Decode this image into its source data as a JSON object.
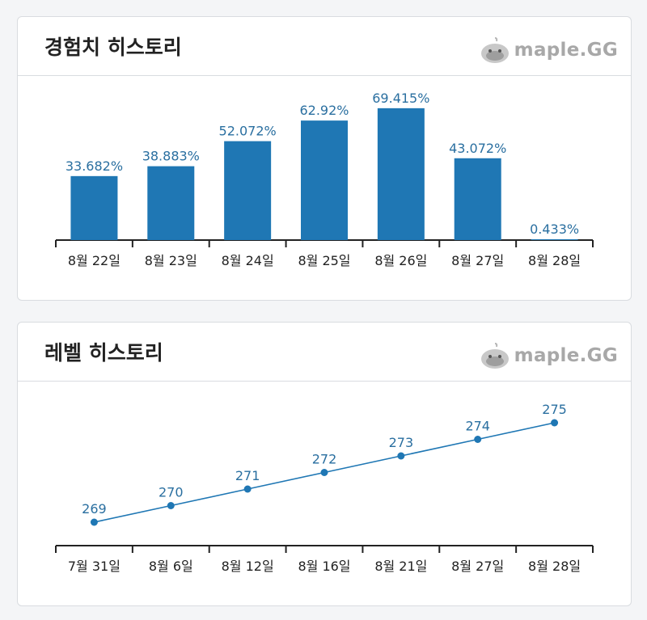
{
  "logo_text": "maple.GG",
  "exp_card": {
    "title": "경험치 히스토리"
  },
  "level_card": {
    "title": "레벨 히스토리"
  },
  "colors": {
    "bar": "#1f77b4",
    "label": "#2a6fa0",
    "axis": "#222222"
  },
  "chart_data": [
    {
      "type": "bar",
      "categories": [
        "8월 22일",
        "8월 23일",
        "8월 24일",
        "8월 25일",
        "8월 26일",
        "8월 27일",
        "8월 28일"
      ],
      "values": [
        33.682,
        38.883,
        52.072,
        62.92,
        69.415,
        43.072,
        0.433
      ],
      "value_labels": [
        "33.682%",
        "38.883%",
        "52.072%",
        "62.92%",
        "69.415%",
        "43.072%",
        "0.433%"
      ],
      "ylim": [
        0,
        100
      ]
    },
    {
      "type": "line",
      "categories": [
        "7월 31일",
        "8월 6일",
        "8월 12일",
        "8월 16일",
        "8월 21일",
        "8월 27일",
        "8월 28일"
      ],
      "values": [
        269,
        270,
        271,
        272,
        273,
        274,
        275
      ],
      "value_labels": [
        "269",
        "270",
        "271",
        "272",
        "273",
        "274",
        "275"
      ]
    }
  ]
}
